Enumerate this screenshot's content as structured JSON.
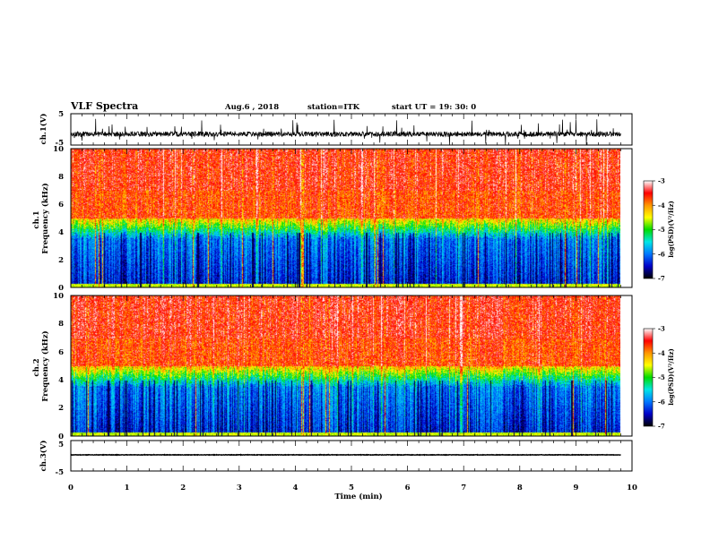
{
  "header": {
    "title": "VLF Spectra",
    "date": "Aug.6 , 2018",
    "station": "station=ITK",
    "start_time": "start UT =  19: 30: 0"
  },
  "chart_data": [
    {
      "panel": "ch1-waveform",
      "type": "line",
      "ylabel": "ch.1(V)",
      "ylim": [
        -5,
        5
      ],
      "y_tick_labels": [
        "-5",
        "5"
      ],
      "x_range_min": [
        0,
        10
      ],
      "data_end_min": 9.8,
      "baseline_v": -1.5,
      "spike_v_range": [
        -5,
        5
      ]
    },
    {
      "panel": "ch1-spectrogram",
      "type": "heatmap",
      "ylabel": "ch.1\nFrequency (kHz)",
      "ylim": [
        0,
        10
      ],
      "y_tick_labels": [
        "0",
        "2",
        "4",
        "6",
        "8",
        "10"
      ],
      "x_range_min": [
        0,
        10
      ],
      "data_end_min": 9.8,
      "dominant_bands_khz": [
        {
          "range": [
            0,
            3.5
          ],
          "level": "-6.5 to -7"
        },
        {
          "range": [
            3.5,
            5
          ],
          "level": "-5 to -5.5"
        },
        {
          "range": [
            5,
            10
          ],
          "level": "-3.5 to -4"
        }
      ],
      "colorbar": {
        "label": "log(PSD)(V²/Hz)",
        "range": [
          -7,
          -3
        ],
        "tick_labels": [
          "-3",
          "-4",
          "-5",
          "-6",
          "-7"
        ],
        "colors": [
          "#000000",
          "#0000c8",
          "#0078ff",
          "#00e6e6",
          "#00dc00",
          "#ffff00",
          "#ff9600",
          "#ff0000",
          "#ffffff"
        ]
      }
    },
    {
      "panel": "ch2-spectrogram",
      "type": "heatmap",
      "ylabel": "ch.2\nFrequency (kHz)",
      "ylim": [
        0,
        10
      ],
      "y_tick_labels": [
        "0",
        "2",
        "4",
        "6",
        "8",
        "10"
      ],
      "x_range_min": [
        0,
        10
      ],
      "data_end_min": 9.8,
      "dominant_bands_khz": [
        {
          "range": [
            0,
            3.5
          ],
          "level": "-6.5 to -7"
        },
        {
          "range": [
            3.5,
            5
          ],
          "level": "-5 to -5.5"
        },
        {
          "range": [
            5,
            10
          ],
          "level": "-3.5 to -4"
        }
      ],
      "colorbar": {
        "label": "log(PSD)(V²/Hz)",
        "range": [
          -7,
          -3
        ],
        "tick_labels": [
          "-3",
          "-4",
          "-5",
          "-6",
          "-7"
        ],
        "colors": [
          "#000000",
          "#0000c8",
          "#0078ff",
          "#00e6e6",
          "#00dc00",
          "#ffff00",
          "#ff9600",
          "#ff0000",
          "#ffffff"
        ]
      }
    },
    {
      "panel": "ch3-waveform",
      "type": "line",
      "ylabel": "ch.3(V)",
      "ylim": [
        -5,
        5
      ],
      "y_tick_labels": [
        "-5",
        "5"
      ],
      "x_range_min": [
        0,
        10
      ],
      "data_end_min": 9.8,
      "baseline_v": 0.3
    }
  ],
  "xaxis": {
    "label": "Time (min)",
    "tick_labels": [
      "0",
      "1",
      "2",
      "3",
      "4",
      "5",
      "6",
      "7",
      "8",
      "9",
      "10"
    ]
  }
}
